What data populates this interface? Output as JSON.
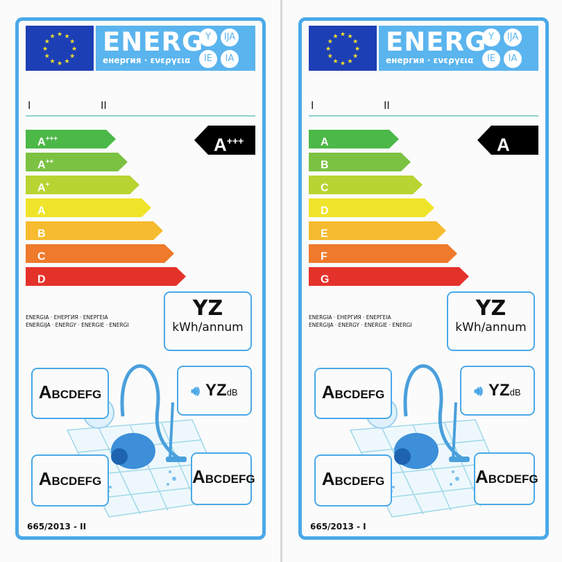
{
  "labels": [
    {
      "header": {
        "title": "ENERG",
        "subtitle": "енергия · ενεργεια",
        "suffixes": [
          "Y",
          "IJA",
          "IE",
          "IA"
        ]
      },
      "supplier_marks": [
        "I",
        "II"
      ],
      "classes": [
        {
          "base": "A",
          "sup": "+++",
          "color": "#4cb848"
        },
        {
          "base": "A",
          "sup": "++",
          "color": "#7cc242"
        },
        {
          "base": "A",
          "sup": "+",
          "color": "#b8d432"
        },
        {
          "base": "A",
          "sup": "",
          "color": "#efe42a"
        },
        {
          "base": "B",
          "sup": "",
          "color": "#f6bb2f"
        },
        {
          "base": "C",
          "sup": "",
          "color": "#ef7a2b"
        },
        {
          "base": "D",
          "sup": "",
          "color": "#e4322b"
        }
      ],
      "rating": {
        "base": "A",
        "sup": "+++"
      },
      "energy_words": [
        "ENERGIA · ЕНЕРГИЯ · ΕΝΕΡΓΕΙΑ",
        "ENERGIJA · ENERGY · ENERGIE · ENERGI"
      ],
      "consumption": {
        "value": "YZ",
        "unit": "kWh/annum"
      },
      "dust_class": {
        "first": "A",
        "rest": "BCDEFG"
      },
      "noise": {
        "value": "YZ",
        "unit": "dB"
      },
      "carpet_class": {
        "first": "A",
        "rest": "BCDEFG"
      },
      "hard_floor_class": {
        "first": "A",
        "rest": "BCDEFG"
      },
      "regulation": "665/2013 - II"
    },
    {
      "header": {
        "title": "ENERG",
        "subtitle": "енергия · ενεργεια",
        "suffixes": [
          "Y",
          "IJA",
          "IE",
          "IA"
        ]
      },
      "supplier_marks": [
        "I",
        "II"
      ],
      "classes": [
        {
          "base": "A",
          "sup": "",
          "color": "#4cb848"
        },
        {
          "base": "B",
          "sup": "",
          "color": "#7cc242"
        },
        {
          "base": "C",
          "sup": "",
          "color": "#b8d432"
        },
        {
          "base": "D",
          "sup": "",
          "color": "#efe42a"
        },
        {
          "base": "E",
          "sup": "",
          "color": "#f6bb2f"
        },
        {
          "base": "F",
          "sup": "",
          "color": "#ef7a2b"
        },
        {
          "base": "G",
          "sup": "",
          "color": "#e4322b"
        }
      ],
      "rating": {
        "base": "A",
        "sup": ""
      },
      "energy_words": [
        "ENERGIA · ЕНЕРГИЯ · ΕΝΕΡΓΕΙΑ",
        "ENERGIJA · ENERGY · ENERGIE · ENERGI"
      ],
      "consumption": {
        "value": "YZ",
        "unit": "kWh/annum"
      },
      "dust_class": {
        "first": "A",
        "rest": "BCDEFG"
      },
      "noise": {
        "value": "YZ",
        "unit": "dB"
      },
      "carpet_class": {
        "first": "A",
        "rest": "BCDEFG"
      },
      "hard_floor_class": {
        "first": "A",
        "rest": "BCDEFG"
      },
      "regulation": "665/2013 - I"
    }
  ],
  "colors": {
    "border": "#4aa8e8",
    "header": "#5ab4ee",
    "flag": "#1d3fb5",
    "stars": "#f5e02a"
  }
}
